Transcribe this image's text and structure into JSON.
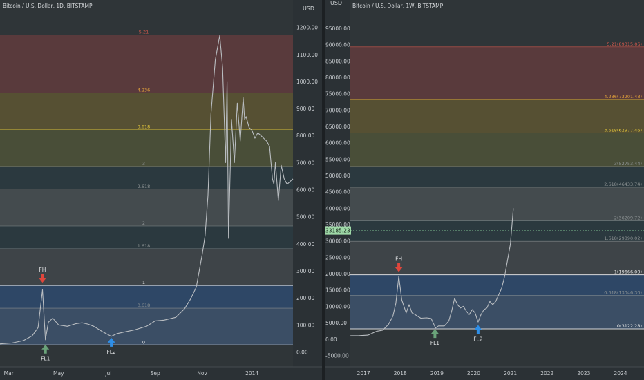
{
  "chart_data": [
    {
      "type": "line",
      "title": "Bitcoin / U.S. Dollar, 1D, BITSTAMP",
      "axis_unit": "USD",
      "y_ticks": [
        "1200.00",
        "1100.00",
        "1000.00",
        "900.00",
        "800.00",
        "700.00",
        "600.00",
        "500.00",
        "400.00",
        "300.00",
        "200.00",
        "100.00",
        "0.00"
      ],
      "y_tick_values": [
        1200,
        1100,
        1000,
        900,
        800,
        700,
        600,
        500,
        400,
        300,
        200,
        100,
        0
      ],
      "ylim": [
        -55,
        1245
      ],
      "x_ticks": [
        "Mar",
        "May",
        "Jul",
        "Sep",
        "Nov",
        "2014"
      ],
      "x_tick_positions": [
        0.03,
        0.2,
        0.37,
        0.53,
        0.69,
        0.86
      ],
      "fib_levels": [
        {
          "label": "5.21",
          "value": 1172,
          "color": "#d9594c"
        },
        {
          "label": "4.236",
          "value": 958,
          "color": "#e5a43b"
        },
        {
          "label": "3.618",
          "value": 822,
          "color": "#e5c83b"
        },
        {
          "label": "3",
          "value": 686,
          "color": "#8d9394"
        },
        {
          "label": "2.618",
          "value": 602,
          "color": "#8d9394"
        },
        {
          "label": "2",
          "value": 466,
          "color": "#8d9394"
        },
        {
          "label": "1.618",
          "value": 382,
          "color": "#8d9394"
        },
        {
          "label": "1",
          "value": 246,
          "color": "#e8e8e8"
        },
        {
          "label": "0.618",
          "value": 162,
          "color": "#8d9394"
        },
        {
          "label": "0",
          "value": 26,
          "color": "#e8e8e8"
        }
      ],
      "markers": [
        {
          "label": "FH",
          "x": 0.145,
          "y": 246,
          "kind": "down",
          "color": "#e0463c"
        },
        {
          "label": "FL1",
          "x": 0.155,
          "y": 30,
          "kind": "up",
          "color": "#6aa37a"
        },
        {
          "label": "FL2",
          "x": 0.38,
          "y": 55,
          "kind": "up",
          "color": "#2e8fe8"
        }
      ],
      "series": [
        {
          "x": [
            0,
            0.04,
            0.08,
            0.11,
            0.13,
            0.145,
            0.155,
            0.165,
            0.18,
            0.2,
            0.23,
            0.26,
            0.28,
            0.3,
            0.32,
            0.35,
            0.38,
            0.4,
            0.43,
            0.46,
            0.5,
            0.53,
            0.56,
            0.6,
            0.63,
            0.65,
            0.67,
            0.68,
            0.69,
            0.7,
            0.71,
            0.72,
            0.735,
            0.75,
            0.76,
            0.77,
            0.775,
            0.78,
            0.79,
            0.8,
            0.81,
            0.82,
            0.83,
            0.835,
            0.84,
            0.85,
            0.86,
            0.87,
            0.88,
            0.89,
            0.9,
            0.91,
            0.92,
            0.93,
            0.935,
            0.94,
            0.95,
            0.96,
            0.97,
            0.98,
            1.0
          ],
          "values": [
            30,
            33,
            42,
            60,
            90,
            230,
            45,
            110,
            125,
            100,
            95,
            105,
            108,
            103,
            95,
            75,
            58,
            68,
            75,
            82,
            95,
            115,
            118,
            128,
            160,
            195,
            240,
            300,
            360,
            430,
            580,
            880,
            1080,
            1170,
            1050,
            700,
            1000,
            420,
            860,
            700,
            920,
            780,
            940,
            860,
            870,
            830,
            820,
            790,
            810,
            800,
            790,
            780,
            760,
            640,
            620,
            700,
            560,
            690,
            640,
            620,
            640
          ]
        }
      ]
    },
    {
      "type": "line",
      "title": "Bitcoin / U.S. Dollar, 1W, BITSTAMP",
      "axis_unit": "USD",
      "y_ticks": [
        "95000.00",
        "90000.00",
        "85000.00",
        "80000.00",
        "75000.00",
        "70000.00",
        "65000.00",
        "60000.00",
        "55000.00",
        "50000.00",
        "45000.00",
        "40000.00",
        "35000.00",
        "30000.00",
        "25000.00",
        "20000.00",
        "15000.00",
        "10000.00",
        "5000.00",
        "0.00",
        "-5000.00"
      ],
      "y_tick_values": [
        95000,
        90000,
        85000,
        80000,
        75000,
        70000,
        65000,
        60000,
        55000,
        50000,
        45000,
        40000,
        35000,
        30000,
        25000,
        20000,
        15000,
        10000,
        5000,
        0,
        -5000
      ],
      "ylim": [
        -8500,
        99000
      ],
      "x_ticks": [
        "2017",
        "2018",
        "2019",
        "2020",
        "2021",
        "2022",
        "2023",
        "2024"
      ],
      "x_tick_positions": [
        0.045,
        0.17,
        0.295,
        0.42,
        0.545,
        0.67,
        0.795,
        0.92
      ],
      "last_price": "33185.23",
      "last_price_value": 33185.23,
      "fib_levels": [
        {
          "label": "5.21(89315.06)",
          "value": 89315.06,
          "color": "#d9594c"
        },
        {
          "label": "4.236(73201.48)",
          "value": 73201.48,
          "color": "#e5a43b"
        },
        {
          "label": "3.618(62977.46)",
          "value": 62977.46,
          "color": "#e5c83b"
        },
        {
          "label": "3(52753.44)",
          "value": 52753.44,
          "color": "#8d9394"
        },
        {
          "label": "2.618(46433.74)",
          "value": 46433.74,
          "color": "#8d9394"
        },
        {
          "label": "2(36209.72)",
          "value": 36209.72,
          "color": "#8d9394"
        },
        {
          "label": "1.618(29890.02)",
          "value": 29890.02,
          "color": "#8d9394"
        },
        {
          "label": "1(19666.00)",
          "value": 19666.0,
          "color": "#e8e8e8"
        },
        {
          "label": "0.618(13346.30)",
          "value": 13346.3,
          "color": "#8d9394"
        },
        {
          "label": "0(3122.28)",
          "value": 3122.28,
          "color": "#e8e8e8"
        }
      ],
      "markers": [
        {
          "label": "FH",
          "x": 0.165,
          "y": 19666,
          "kind": "down",
          "color": "#e0463c"
        },
        {
          "label": "FL1",
          "x": 0.288,
          "y": 3300,
          "kind": "up",
          "color": "#6aa37a"
        },
        {
          "label": "FL2",
          "x": 0.435,
          "y": 4500,
          "kind": "up",
          "color": "#2e8fe8"
        }
      ],
      "series": [
        {
          "x": [
            0,
            0.03,
            0.06,
            0.09,
            0.11,
            0.13,
            0.145,
            0.155,
            0.165,
            0.175,
            0.19,
            0.2,
            0.21,
            0.22,
            0.24,
            0.26,
            0.275,
            0.29,
            0.3,
            0.32,
            0.335,
            0.345,
            0.355,
            0.365,
            0.375,
            0.385,
            0.395,
            0.405,
            0.415,
            0.425,
            0.435,
            0.445,
            0.455,
            0.465,
            0.475,
            0.485,
            0.495,
            0.505,
            0.515,
            0.525,
            0.535,
            0.545,
            0.555
          ],
          "values": [
            1000,
            1050,
            1200,
            2400,
            2700,
            4500,
            7000,
            11000,
            19200,
            12000,
            8000,
            10500,
            8000,
            7500,
            6400,
            6500,
            6300,
            3400,
            4000,
            4000,
            5500,
            8500,
            12500,
            10500,
            9500,
            10000,
            8500,
            7500,
            9000,
            8000,
            5200,
            7500,
            9000,
            9500,
            11500,
            10500,
            11500,
            13500,
            15500,
            19000,
            24000,
            29000,
            40000
          ]
        }
      ]
    }
  ]
}
